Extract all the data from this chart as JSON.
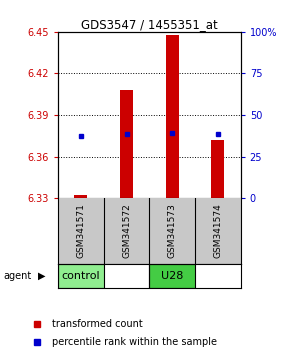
{
  "title": "GDS3547 / 1455351_at",
  "samples": [
    "GSM341571",
    "GSM341572",
    "GSM341573",
    "GSM341574"
  ],
  "groups": [
    "control",
    "control",
    "U28",
    "U28"
  ],
  "bar_values": [
    6.332,
    6.408,
    6.448,
    6.372
  ],
  "bar_base": 6.33,
  "percentile_values": [
    6.375,
    6.376,
    6.377,
    6.376
  ],
  "ylim_left": [
    6.33,
    6.45
  ],
  "ylim_right": [
    0,
    100
  ],
  "yticks_left": [
    6.33,
    6.36,
    6.39,
    6.42,
    6.45
  ],
  "yticks_right": [
    0,
    25,
    50,
    75,
    100
  ],
  "bar_color": "#CC0000",
  "percentile_color": "#0000CC",
  "bg_color": "#FFFFFF",
  "plot_bg": "#FFFFFF",
  "ylabel_left_color": "#CC0000",
  "ylabel_right_color": "#0000CC",
  "control_color": "#90EE90",
  "u28_color": "#44CC44",
  "gsm_bg_color": "#C8C8C8",
  "legend_items": [
    "transformed count",
    "percentile rank within the sample"
  ]
}
